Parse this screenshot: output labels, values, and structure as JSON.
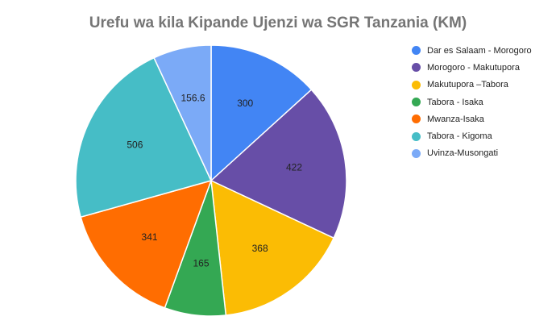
{
  "chart_data": {
    "type": "pie",
    "title": "Urefu wa kila Kipande Ujenzi wa SGR Tanzania (KM)",
    "legend_position": "right",
    "slices": [
      {
        "label": "Dar es Salaam - Morogoro",
        "value": 300,
        "value_label": "300",
        "color": "#4285f4"
      },
      {
        "label": "Morogoro - Makutupora",
        "value": 422,
        "value_label": "422",
        "color": "#674ea7"
      },
      {
        "label": "Makutupora –Tabora",
        "value": 368,
        "value_label": "368",
        "color": "#fbbc04"
      },
      {
        "label": "Tabora - Isaka",
        "value": 165,
        "value_label": "165",
        "color": "#34a853"
      },
      {
        "label": "Mwanza-Isaka",
        "value": 341,
        "value_label": "341",
        "color": "#ff6d01"
      },
      {
        "label": "Tabora - Kigoma",
        "value": 506,
        "value_label": "506",
        "color": "#46bdc6"
      },
      {
        "label": "Uvinza-Musongati",
        "value": 156.6,
        "value_label": "156.6",
        "color": "#7baaf7"
      }
    ]
  }
}
